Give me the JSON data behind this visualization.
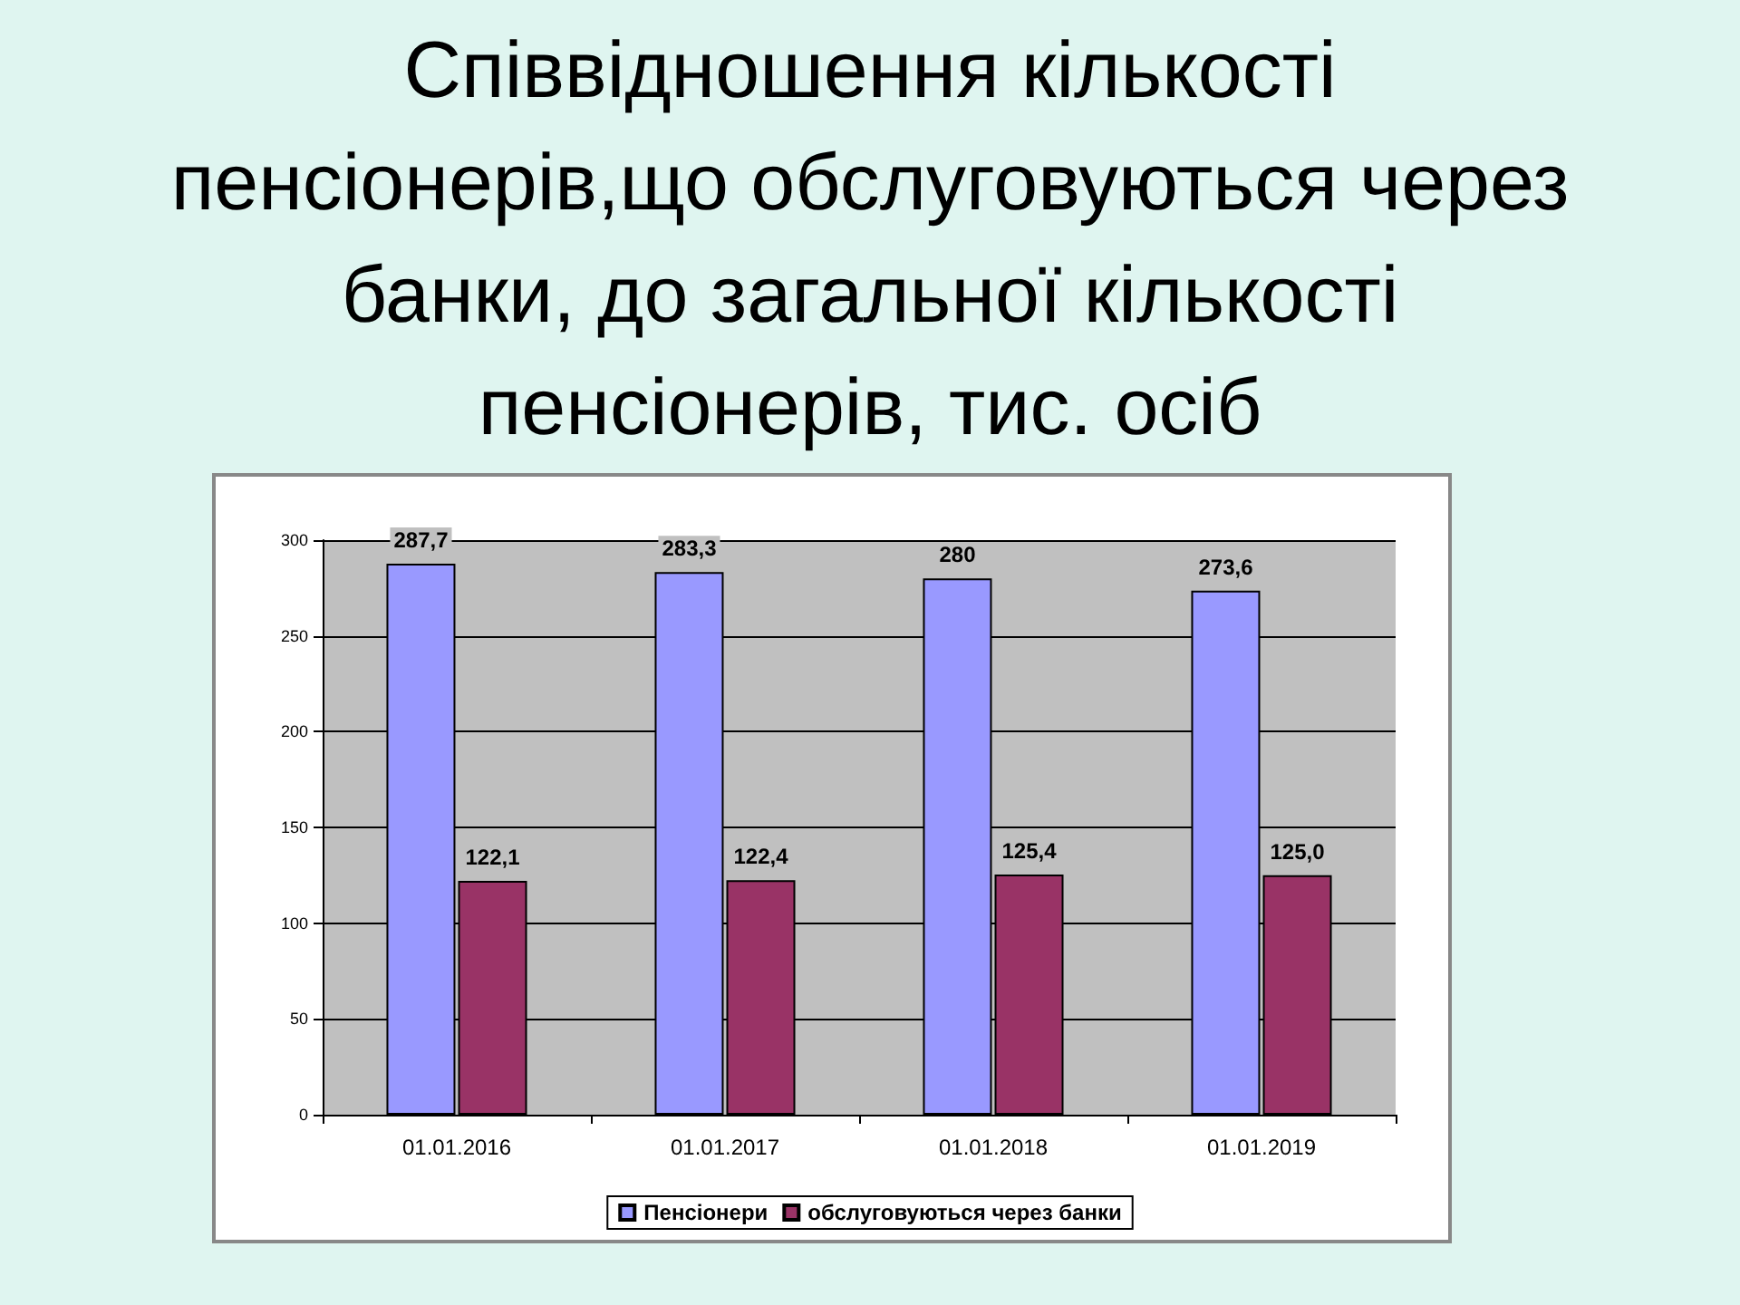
{
  "chart_data": {
    "type": "bar",
    "title": "Співвідношення кількості пенсіонерів,що обслуговуються через банки, до загальної кількості пенсіонерів, тис. осіб",
    "categories": [
      "01.01.2016",
      "01.01.2017",
      "01.01.2018",
      "01.01.2019"
    ],
    "series": [
      {
        "name": "Пенсіонери",
        "color": "#9999ff",
        "values": [
          287.7,
          283.3,
          280,
          273.6
        ],
        "value_labels": [
          "287,7",
          "283,3",
          "280",
          "273,6"
        ]
      },
      {
        "name": "обслуговуються через банки",
        "color": "#993366",
        "values": [
          122.1,
          122.4,
          125.4,
          125.0
        ],
        "value_labels": [
          "122,1",
          "122,4",
          "125,4",
          "125,0"
        ]
      }
    ],
    "ylim": [
      0,
      300
    ],
    "yticks": [
      0,
      50,
      100,
      150,
      200,
      250,
      300
    ],
    "grid": "y",
    "legend": "bottom"
  }
}
